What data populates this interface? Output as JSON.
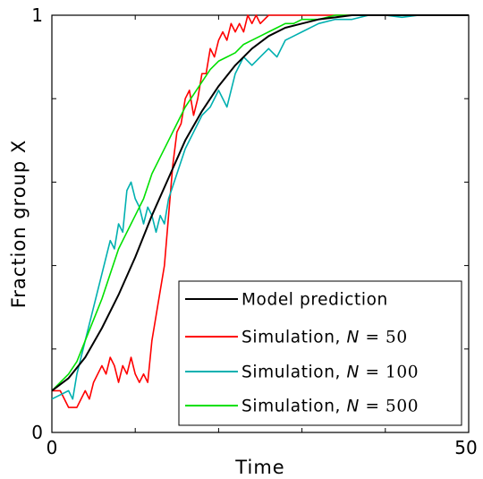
{
  "chart_data": {
    "type": "line",
    "title": "",
    "xlabel": "Time",
    "ylabel": "Fraction group X",
    "xlim": [
      0,
      50
    ],
    "ylim": [
      0,
      1
    ],
    "x_tick_labels": [
      "0",
      "50"
    ],
    "y_tick_labels": [
      "0",
      "1"
    ],
    "grid": false,
    "legend_position": "bottom-right",
    "series": [
      {
        "name": "Model prediction",
        "legend": {
          "prefix": "Model prediction",
          "var": "",
          "eq": "",
          "num": ""
        },
        "color": "#000000",
        "x": [
          0,
          2,
          4,
          6,
          8,
          10,
          12,
          14,
          16,
          18,
          20,
          22,
          24,
          26,
          28,
          30,
          32,
          34,
          36,
          38,
          40,
          42,
          44,
          46,
          48,
          50
        ],
        "y": [
          0.1,
          0.13,
          0.18,
          0.25,
          0.33,
          0.42,
          0.52,
          0.61,
          0.7,
          0.77,
          0.83,
          0.88,
          0.92,
          0.95,
          0.97,
          0.98,
          0.99,
          0.995,
          1.0,
          1.0,
          1.0,
          1.0,
          1.0,
          1.0,
          1.0,
          1.0
        ]
      },
      {
        "name": "Simulation, N = 50",
        "legend": {
          "prefix": "Simulation, ",
          "var": "N",
          "eq": " = ",
          "num": "50"
        },
        "color": "#ff0000",
        "x": [
          0,
          1,
          2,
          3,
          4,
          4.5,
          5,
          6,
          6.5,
          7,
          7.5,
          8,
          8.5,
          9,
          9.5,
          10,
          10.5,
          11,
          11.5,
          12,
          12.5,
          13,
          13.5,
          14,
          14.5,
          15,
          15.5,
          16,
          16.5,
          17,
          17.5,
          18,
          18.5,
          19,
          19.5,
          20,
          20.5,
          21,
          21.5,
          22,
          22.5,
          23,
          23.5,
          24,
          24.5,
          25,
          26,
          27,
          28,
          30,
          35,
          40,
          45,
          50
        ],
        "y": [
          0.1,
          0.1,
          0.06,
          0.06,
          0.1,
          0.08,
          0.12,
          0.16,
          0.14,
          0.18,
          0.16,
          0.12,
          0.16,
          0.14,
          0.18,
          0.14,
          0.12,
          0.14,
          0.12,
          0.22,
          0.28,
          0.34,
          0.4,
          0.52,
          0.64,
          0.72,
          0.74,
          0.8,
          0.82,
          0.76,
          0.8,
          0.86,
          0.86,
          0.92,
          0.9,
          0.94,
          0.96,
          0.94,
          0.98,
          0.96,
          0.98,
          0.96,
          1.0,
          0.98,
          1.0,
          0.98,
          1.0,
          1.0,
          1.0,
          1.0,
          1.0,
          1.0,
          1.0,
          1.0
        ]
      },
      {
        "name": "Simulation, N = 100",
        "legend": {
          "prefix": "Simulation, ",
          "var": "N",
          "eq": " = ",
          "num": "100"
        },
        "color": "#00b0b0",
        "x": [
          0,
          1,
          2,
          2.5,
          3,
          4,
          5,
          6,
          7,
          7.5,
          8,
          8.5,
          9,
          9.5,
          10,
          10.5,
          11,
          11.5,
          12,
          12.5,
          13,
          13.5,
          14,
          15,
          16,
          17,
          18,
          19,
          20,
          21,
          22,
          23,
          24,
          25,
          26,
          27,
          28,
          29,
          30,
          32,
          34,
          36,
          38,
          40,
          42,
          44,
          46,
          48,
          50
        ],
        "y": [
          0.08,
          0.09,
          0.1,
          0.08,
          0.14,
          0.22,
          0.3,
          0.38,
          0.46,
          0.44,
          0.5,
          0.48,
          0.58,
          0.6,
          0.56,
          0.54,
          0.5,
          0.54,
          0.52,
          0.48,
          0.52,
          0.5,
          0.56,
          0.62,
          0.68,
          0.72,
          0.76,
          0.78,
          0.82,
          0.78,
          0.86,
          0.9,
          0.88,
          0.9,
          0.92,
          0.9,
          0.94,
          0.95,
          0.96,
          0.98,
          0.99,
          0.99,
          1.0,
          1.0,
          0.995,
          1.0,
          1.0,
          1.0,
          1.0
        ]
      },
      {
        "name": "Simulation, N = 500",
        "legend": {
          "prefix": "Simulation, ",
          "var": "N",
          "eq": " = ",
          "num": "500"
        },
        "color": "#00e000",
        "x": [
          0,
          1,
          2,
          3,
          4,
          5,
          6,
          7,
          8,
          9,
          10,
          11,
          12,
          13,
          14,
          15,
          16,
          17,
          18,
          19,
          20,
          21,
          22,
          23,
          24,
          25,
          26,
          27,
          28,
          29,
          30,
          32,
          34,
          36,
          38,
          40,
          42,
          44,
          46,
          48,
          50
        ],
        "y": [
          0.1,
          0.12,
          0.14,
          0.17,
          0.22,
          0.27,
          0.32,
          0.38,
          0.44,
          0.48,
          0.52,
          0.56,
          0.62,
          0.66,
          0.7,
          0.74,
          0.78,
          0.81,
          0.84,
          0.87,
          0.89,
          0.9,
          0.91,
          0.93,
          0.94,
          0.95,
          0.96,
          0.97,
          0.98,
          0.98,
          0.99,
          0.99,
          1.0,
          1.0,
          1.0,
          1.0,
          1.0,
          1.0,
          1.0,
          1.0,
          1.0
        ]
      }
    ]
  }
}
